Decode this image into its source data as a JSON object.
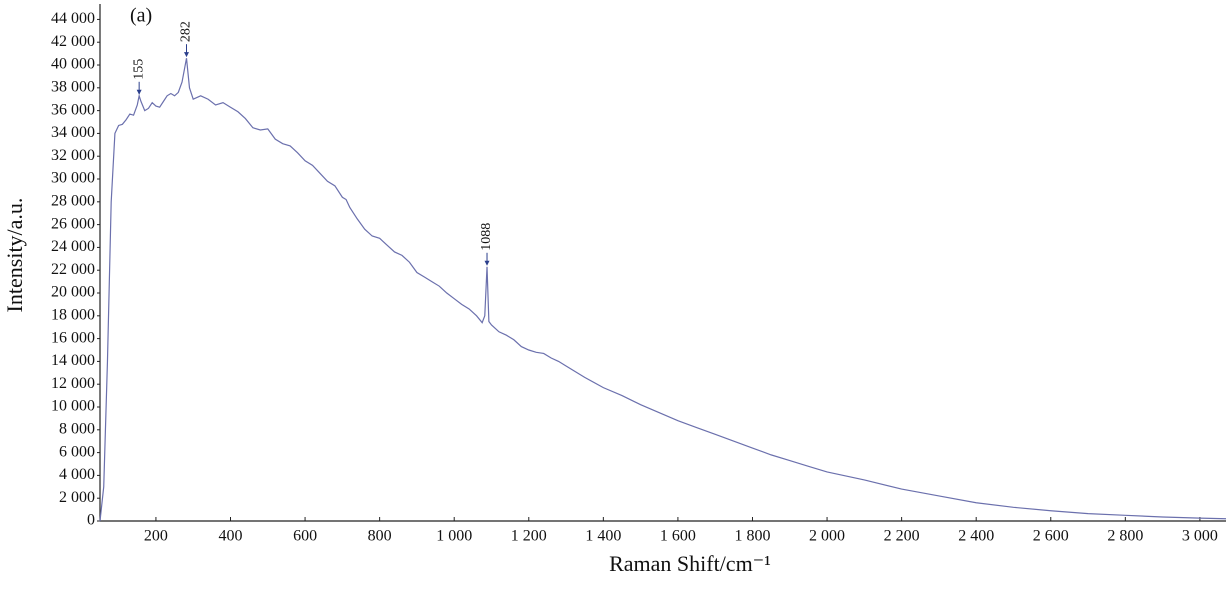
{
  "chart_data": {
    "type": "line",
    "panel_label": "(a)",
    "xlabel": "Raman Shift/cm⁻¹",
    "ylabel": "Intensity/a.u.",
    "color": "#6b70ad",
    "annotation_color": "#2b3f8c",
    "x": [
      50,
      60,
      70,
      80,
      90,
      100,
      110,
      120,
      130,
      140,
      150,
      155,
      160,
      170,
      180,
      190,
      200,
      210,
      220,
      230,
      240,
      250,
      260,
      270,
      282,
      290,
      300,
      320,
      340,
      360,
      380,
      400,
      420,
      440,
      460,
      480,
      500,
      520,
      540,
      560,
      580,
      600,
      620,
      640,
      660,
      680,
      700,
      710,
      720,
      740,
      760,
      780,
      800,
      820,
      840,
      860,
      880,
      900,
      920,
      940,
      960,
      980,
      1000,
      1020,
      1040,
      1060,
      1075,
      1082,
      1088,
      1093,
      1100,
      1120,
      1140,
      1160,
      1180,
      1200,
      1220,
      1240,
      1260,
      1280,
      1300,
      1350,
      1400,
      1450,
      1500,
      1550,
      1600,
      1650,
      1700,
      1750,
      1800,
      1850,
      1900,
      1950,
      2000,
      2100,
      2200,
      2300,
      2400,
      2500,
      2600,
      2700,
      2800,
      2900,
      3000,
      3070
    ],
    "values": [
      0,
      3000,
      14000,
      28000,
      34000,
      34700,
      34800,
      35200,
      35700,
      35600,
      36500,
      37300,
      36800,
      36000,
      36200,
      36700,
      36400,
      36300,
      36800,
      37300,
      37500,
      37300,
      37600,
      38500,
      40600,
      38000,
      37000,
      37300,
      37000,
      36500,
      36700,
      36300,
      35900,
      35300,
      34500,
      34300,
      34400,
      33500,
      33100,
      32900,
      32300,
      31600,
      31200,
      30500,
      29800,
      29400,
      28400,
      28200,
      27500,
      26500,
      25600,
      25000,
      24800,
      24200,
      23600,
      23300,
      22700,
      21800,
      21400,
      21000,
      20600,
      20000,
      19500,
      19000,
      18600,
      18000,
      17400,
      18000,
      22300,
      17500,
      17200,
      16600,
      16300,
      15900,
      15300,
      15000,
      14800,
      14700,
      14300,
      14000,
      13600,
      12600,
      11700,
      11000,
      10200,
      9500,
      8800,
      8200,
      7600,
      7000,
      6400,
      5800,
      5300,
      4800,
      4300,
      3600,
      2800,
      2200,
      1600,
      1200,
      900,
      650,
      500,
      350,
      250,
      200
    ],
    "annotations": [
      {
        "x": 155,
        "y": 37300
      },
      {
        "x": 282,
        "y": 40600
      },
      {
        "x": 1088,
        "y": 22300
      }
    ],
    "xlim": [
      50,
      3070
    ],
    "ylim": [
      0,
      44300
    ],
    "xticks": [
      {
        "value": 200,
        "label": "200"
      },
      {
        "value": 400,
        "label": "400"
      },
      {
        "value": 600,
        "label": "600"
      },
      {
        "value": 800,
        "label": "800"
      },
      {
        "value": 1000,
        "label": "1 000"
      },
      {
        "value": 1200,
        "label": "1 200"
      },
      {
        "value": 1400,
        "label": "1 400"
      },
      {
        "value": 1600,
        "label": "1 600"
      },
      {
        "value": 1800,
        "label": "1 800"
      },
      {
        "value": 2000,
        "label": "2 000"
      },
      {
        "value": 2200,
        "label": "2 200"
      },
      {
        "value": 2400,
        "label": "2 400"
      },
      {
        "value": 2600,
        "label": "2 600"
      },
      {
        "value": 2800,
        "label": "2 800"
      },
      {
        "value": 3000,
        "label": "3 000"
      }
    ],
    "yticks": [
      0,
      {
        "value": 2000,
        "label": "2 000"
      },
      {
        "value": 4000,
        "label": "4 000"
      },
      {
        "value": 6000,
        "label": "6 000"
      },
      {
        "value": 8000,
        "label": "8 000"
      },
      {
        "value": 10000,
        "label": "10 000"
      },
      {
        "value": 12000,
        "label": "12 000"
      },
      {
        "value": 14000,
        "label": "14 000"
      },
      {
        "value": 16000,
        "label": "16 000"
      },
      {
        "value": 18000,
        "label": "18 000"
      },
      {
        "value": 20000,
        "label": "20 000"
      },
      {
        "value": 22000,
        "label": "22 000"
      },
      {
        "value": 24000,
        "label": "24 000"
      },
      {
        "value": 26000,
        "label": "26 000"
      },
      {
        "value": 28000,
        "label": "28 000"
      },
      {
        "value": 30000,
        "label": "30 000"
      },
      {
        "value": 32000,
        "label": "32 000"
      },
      {
        "value": 34000,
        "label": "34 000"
      },
      {
        "value": 36000,
        "label": "36 000"
      },
      {
        "value": 38000,
        "label": "38 000"
      },
      {
        "value": 40000,
        "label": "40 000"
      },
      {
        "value": 42000,
        "label": "42 000"
      },
      {
        "value": 44000,
        "label": "44 000"
      }
    ],
    "grid": false
  }
}
